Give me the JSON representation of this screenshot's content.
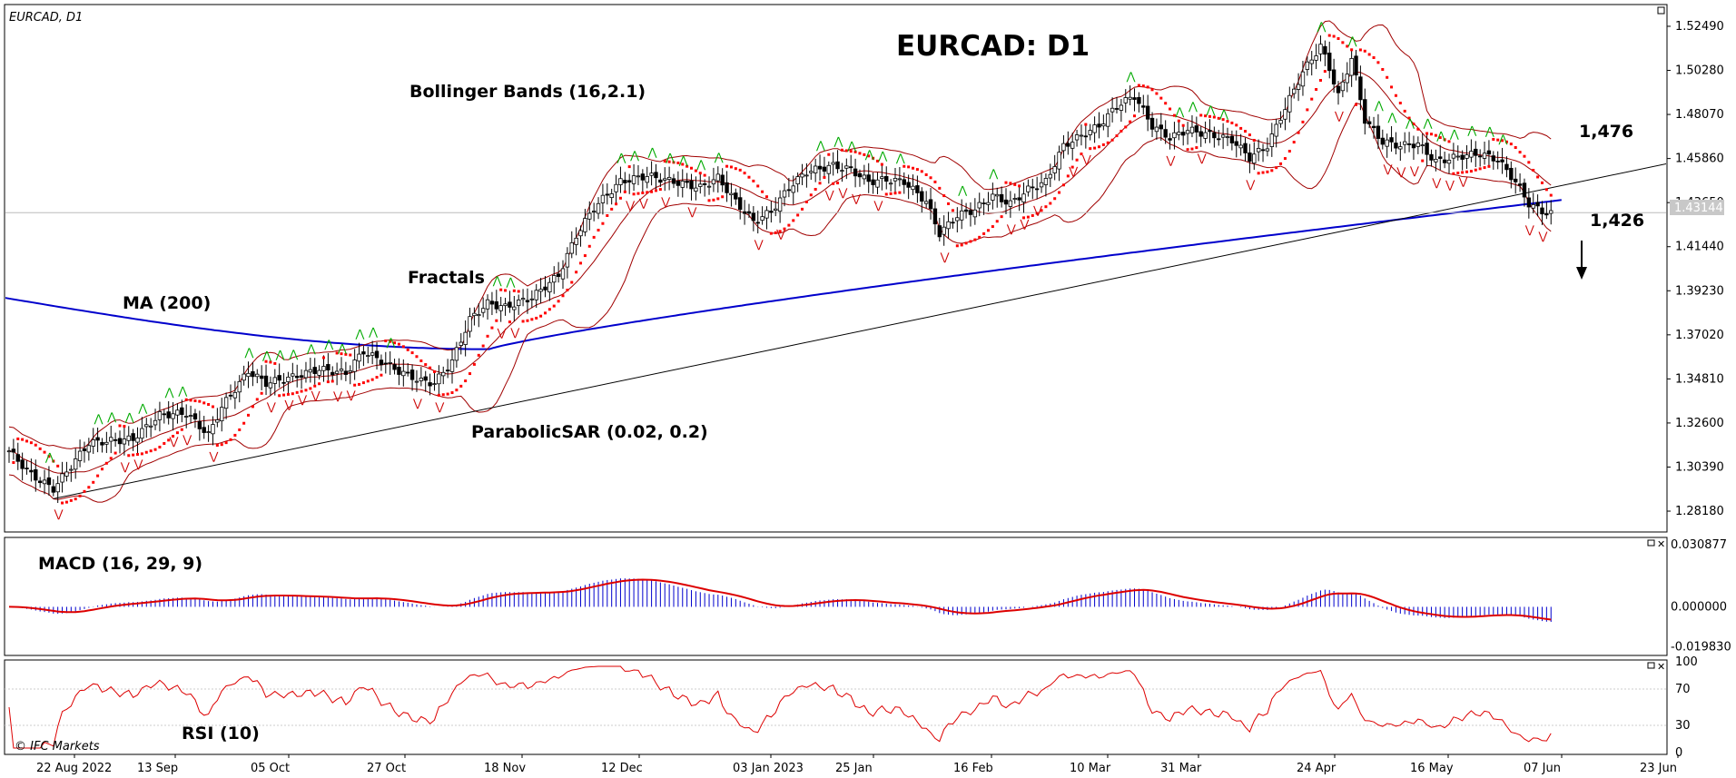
{
  "chart_data": [
    {
      "type": "candlestick",
      "symbol_label": "EURCAD, D1",
      "title": "EURCAD: D1",
      "ylim": [
        1.2718,
        1.5349
      ],
      "y_ticks": [
        "1.52490",
        "1.50280",
        "1.48070",
        "1.45860",
        "1.43650",
        "1.41440",
        "1.39230",
        "1.37020",
        "1.34810",
        "1.32600",
        "1.30390",
        "1.28180"
      ],
      "current_price": "1.43144",
      "x_tick_labels": [
        "22 Aug 2022",
        "13 Sep",
        "05 Oct",
        "27 Oct",
        "18 Nov",
        "12 Dec",
        "03 Jan 2023",
        "25 Jan",
        "16 Feb",
        "10 Mar",
        "31 Mar",
        "24 Apr",
        "16 May",
        "07 Jun",
        "23 Jun"
      ],
      "indicator_labels": {
        "bollinger": "Bollinger Bands (16,2.1)",
        "fractals": "Fractals",
        "ma": "MA (200)",
        "parabolic": "ParabolicSAR (0.02, 0.2)"
      },
      "annotations": {
        "resistance": "1,476",
        "support": "1,426",
        "arrow": "down"
      },
      "close_anchors": [
        [
          0,
          1.312
        ],
        [
          5,
          1.3
        ],
        [
          10,
          1.293
        ],
        [
          18,
          1.316
        ],
        [
          28,
          1.318
        ],
        [
          34,
          1.33
        ],
        [
          40,
          1.331
        ],
        [
          45,
          1.32
        ],
        [
          48,
          1.334
        ],
        [
          54,
          1.352
        ],
        [
          58,
          1.346
        ],
        [
          64,
          1.349
        ],
        [
          70,
          1.353
        ],
        [
          76,
          1.351
        ],
        [
          80,
          1.362
        ],
        [
          84,
          1.357
        ],
        [
          88,
          1.352
        ],
        [
          93,
          1.347
        ],
        [
          96,
          1.346
        ],
        [
          100,
          1.357
        ],
        [
          104,
          1.378
        ],
        [
          108,
          1.386
        ],
        [
          112,
          1.384
        ],
        [
          118,
          1.389
        ],
        [
          124,
          1.4
        ],
        [
          128,
          1.42
        ],
        [
          132,
          1.434
        ],
        [
          138,
          1.447
        ],
        [
          144,
          1.45
        ],
        [
          150,
          1.447
        ],
        [
          156,
          1.444
        ],
        [
          160,
          1.449
        ],
        [
          164,
          1.437
        ],
        [
          168,
          1.427
        ],
        [
          172,
          1.432
        ],
        [
          176,
          1.444
        ],
        [
          180,
          1.452
        ],
        [
          186,
          1.455
        ],
        [
          190,
          1.453
        ],
        [
          194,
          1.447
        ],
        [
          198,
          1.448
        ],
        [
          202,
          1.447
        ],
        [
          207,
          1.437
        ],
        [
          210,
          1.421
        ],
        [
          214,
          1.43
        ],
        [
          218,
          1.433
        ],
        [
          222,
          1.44
        ],
        [
          226,
          1.436
        ],
        [
          230,
          1.443
        ],
        [
          234,
          1.447
        ],
        [
          238,
          1.465
        ],
        [
          242,
          1.47
        ],
        [
          246,
          1.475
        ],
        [
          250,
          1.485
        ],
        [
          254,
          1.49
        ],
        [
          258,
          1.475
        ],
        [
          262,
          1.469
        ],
        [
          266,
          1.473
        ],
        [
          272,
          1.47
        ],
        [
          276,
          1.468
        ],
        [
          280,
          1.459
        ],
        [
          284,
          1.465
        ],
        [
          288,
          1.484
        ],
        [
          292,
          1.502
        ],
        [
          296,
          1.515
        ],
        [
          298,
          1.504
        ],
        [
          300,
          1.49
        ],
        [
          303,
          1.509
        ],
        [
          306,
          1.478
        ],
        [
          310,
          1.467
        ],
        [
          314,
          1.465
        ],
        [
          318,
          1.466
        ],
        [
          322,
          1.457
        ],
        [
          328,
          1.46
        ],
        [
          332,
          1.461
        ],
        [
          336,
          1.458
        ],
        [
          340,
          1.447
        ],
        [
          343,
          1.436
        ],
        [
          346,
          1.432
        ],
        [
          348,
          1.431
        ]
      ]
    },
    {
      "type": "histogram",
      "name": "MACD (16, 29, 9)",
      "y_ticks": [
        "0.030877",
        "0.000000",
        "-0.019830"
      ],
      "ylim": [
        -0.0232,
        0.0335
      ]
    },
    {
      "type": "line",
      "name": "RSI (10)",
      "y_ticks": [
        "100",
        "70",
        "30",
        "0"
      ],
      "ylim": [
        0,
        100
      ],
      "copyright": "© IFC Markets"
    }
  ]
}
